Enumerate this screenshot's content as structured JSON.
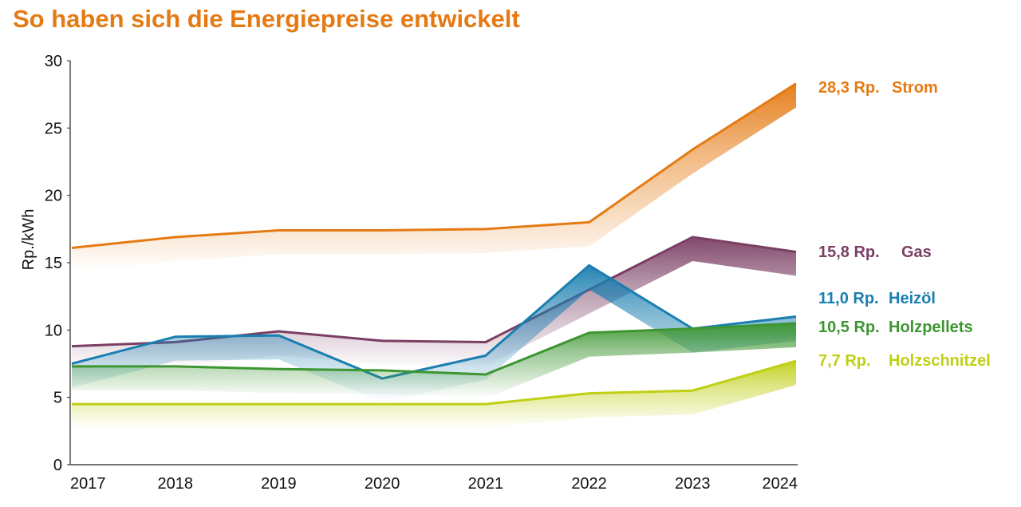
{
  "chart_data": {
    "type": "line",
    "title": "So haben sich die Energiepreise entwickelt",
    "ylabel": "Rp./kWh",
    "xlabel": "",
    "x": [
      "2017",
      "2018",
      "2019",
      "2020",
      "2021",
      "2022",
      "2023",
      "2024"
    ],
    "ylim": [
      0,
      30
    ],
    "yticks": [
      0,
      5,
      10,
      15,
      20,
      25,
      30
    ],
    "grid": false,
    "series": [
      {
        "name": "Strom",
        "value_label": "28,3 Rp.",
        "color": "#e57a13",
        "values": [
          16.1,
          16.9,
          17.4,
          17.4,
          17.5,
          18.0,
          23.4,
          28.3
        ]
      },
      {
        "name": "Gas",
        "value_label": "15,8 Rp.",
        "color": "#7b3f64",
        "values": [
          8.8,
          9.1,
          9.9,
          9.2,
          9.1,
          13.0,
          16.9,
          15.8
        ]
      },
      {
        "name": "Heizöl",
        "value_label": "11,0 Rp.",
        "color": "#1a7fb0",
        "values": [
          7.5,
          9.5,
          9.6,
          6.4,
          8.1,
          14.8,
          10.1,
          11.0
        ]
      },
      {
        "name": "Holzpellets",
        "value_label": "10,5 Rp.",
        "color": "#3e9632",
        "values": [
          7.3,
          7.3,
          7.1,
          7.0,
          6.7,
          9.8,
          10.1,
          10.5
        ]
      },
      {
        "name": "Holzschnitzel",
        "value_label": "7,7 Rp.",
        "color": "#bfcf14",
        "values": [
          4.5,
          4.5,
          4.5,
          4.5,
          4.5,
          5.3,
          5.5,
          7.7
        ]
      }
    ]
  }
}
